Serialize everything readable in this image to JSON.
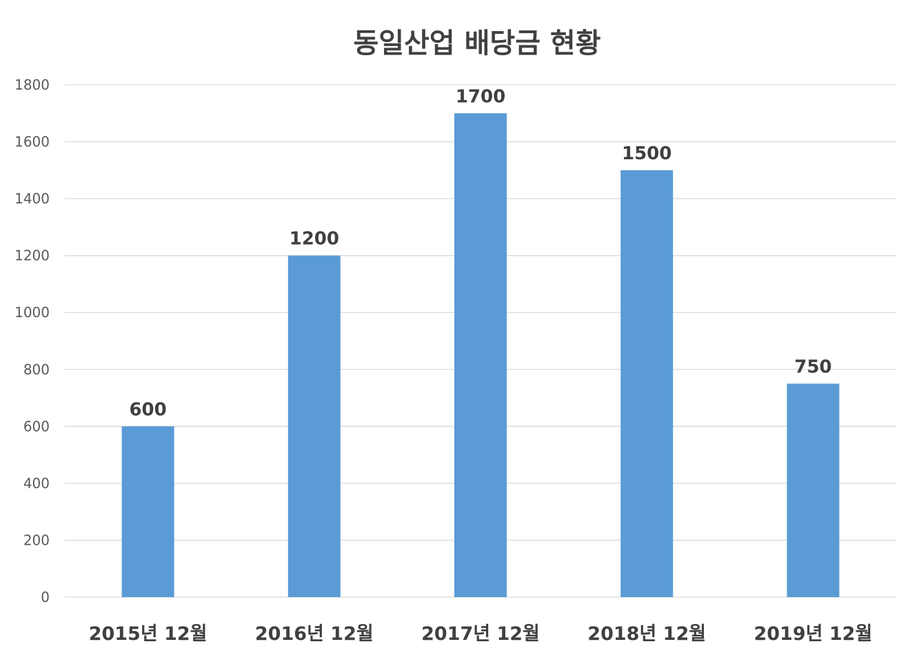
{
  "colors": {
    "bar": "#5B9BD5",
    "grid": "#D9D9D9",
    "text": "#404040",
    "axis_text": "#595959"
  },
  "chart_data": {
    "type": "bar",
    "title": "동일산업 배당금 현황",
    "xlabel": "",
    "ylabel": "",
    "categories": [
      "2015년 12월",
      "2016년 12월",
      "2017년 12월",
      "2018년 12월",
      "2019년 12월"
    ],
    "values": [
      600,
      1200,
      1700,
      1500,
      750
    ],
    "ylim": [
      0,
      1800
    ],
    "yticks": [
      0,
      200,
      400,
      600,
      800,
      1000,
      1200,
      1400,
      1600,
      1800
    ],
    "grid": true,
    "legend": "none",
    "data_labels": true
  }
}
